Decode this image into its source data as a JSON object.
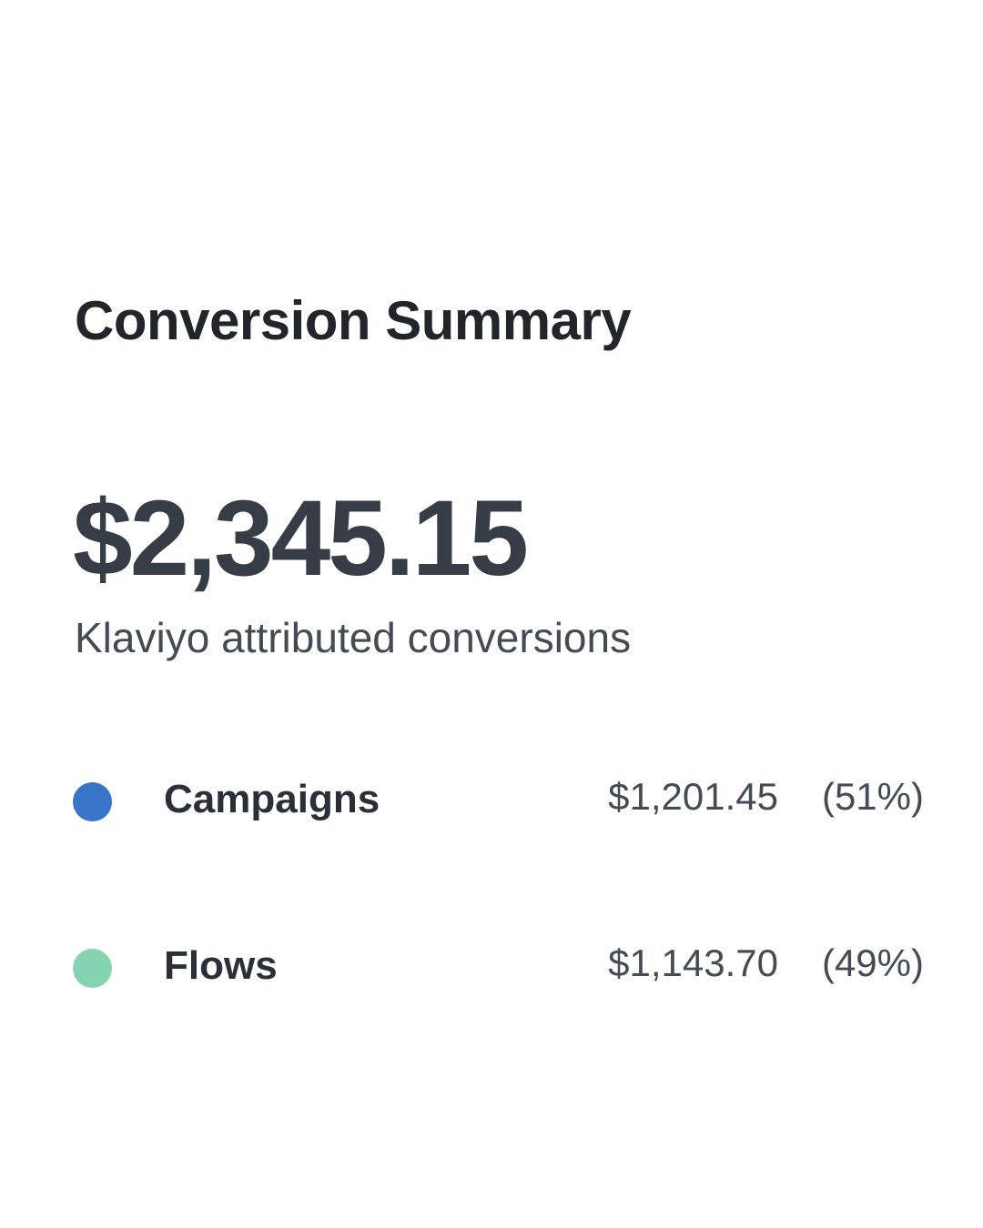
{
  "summary": {
    "title": "Conversion Summary",
    "total": "$2,345.15",
    "subtitle": "Klaviyo attributed conversions"
  },
  "breakdown": [
    {
      "label": "Campaigns",
      "amount": "$1,201.45",
      "percent": "(51%)",
      "color": "#3874c8"
    },
    {
      "label": "Flows",
      "amount": "$1,143.70",
      "percent": "(49%)",
      "color": "#86d3b1"
    }
  ]
}
